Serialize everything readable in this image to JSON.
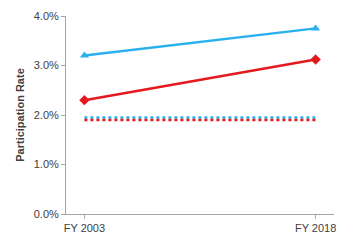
{
  "chart_data": {
    "type": "line",
    "y_label": "Participation Rate",
    "categories": [
      "FY 2003",
      "FY 2018"
    ],
    "series": [
      {
        "color": "#29b0ef",
        "marker": "triangle-up",
        "line_style": "solid",
        "values": [
          3.2,
          3.75
        ]
      },
      {
        "color": "#e3191f",
        "marker": "diamond",
        "line_style": "solid",
        "values": [
          2.3,
          3.12
        ]
      },
      {
        "color": "#29b0ef",
        "marker": "none",
        "line_style": "dot",
        "values": [
          1.95,
          1.95
        ]
      },
      {
        "color": "#e3191f",
        "marker": "none",
        "line_style": "dot",
        "values": [
          1.9,
          1.9
        ]
      }
    ],
    "ylim": [
      0,
      4
    ],
    "yticks": [
      {
        "value": 0,
        "label": "0.0%"
      },
      {
        "value": 1,
        "label": "1.0%"
      },
      {
        "value": 2,
        "label": "2.0%"
      },
      {
        "value": 3,
        "label": "3.0%"
      },
      {
        "value": 4,
        "label": "4.0%"
      }
    ],
    "grid": false
  }
}
